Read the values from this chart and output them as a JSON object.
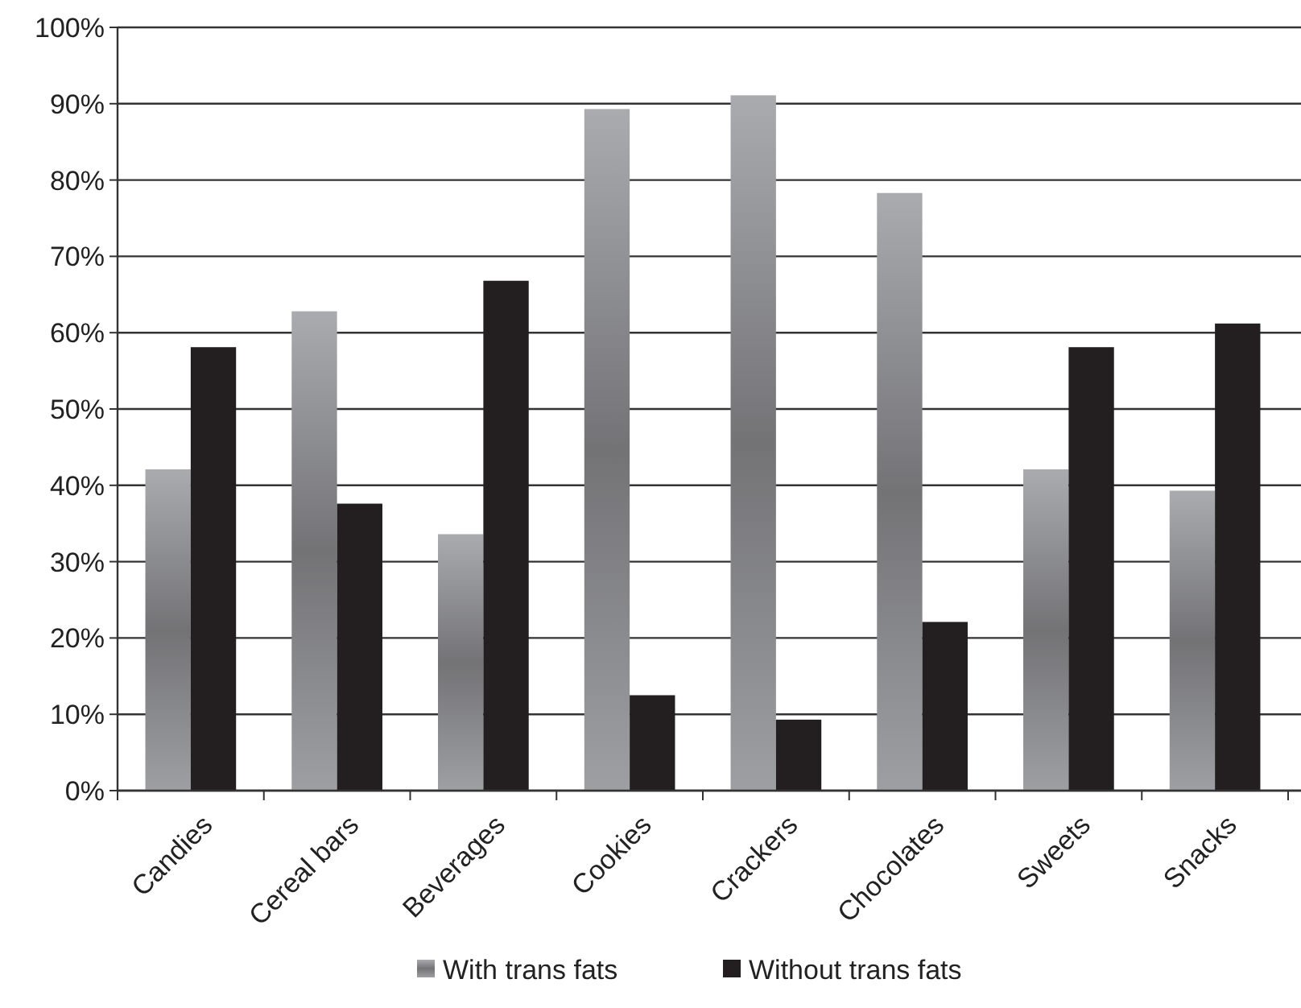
{
  "chart_data": {
    "type": "bar",
    "categories": [
      "Candies",
      "Cereal bars",
      "Beverages",
      "Cookies",
      "Crackers",
      "Chocolates",
      "Sweets",
      "Snacks"
    ],
    "series": [
      {
        "name": "With trans fats",
        "color": "#8e8f92",
        "values": [
          42.1,
          62.8,
          33.6,
          89.3,
          91.1,
          78.3,
          42.1,
          39.3
        ]
      },
      {
        "name": "Without trans fats",
        "color": "#231f20",
        "values": [
          58.1,
          37.6,
          66.8,
          12.5,
          9.3,
          22.1,
          58.1,
          61.2
        ]
      }
    ],
    "ylim": [
      0,
      100
    ],
    "yticks": [
      {
        "value": 0,
        "label": "0%"
      },
      {
        "value": 10,
        "label": "10%"
      },
      {
        "value": 20,
        "label": "20%"
      },
      {
        "value": 30,
        "label": "30%"
      },
      {
        "value": 40,
        "label": "40%"
      },
      {
        "value": 50,
        "label": "50%"
      },
      {
        "value": 60,
        "label": "60%"
      },
      {
        "value": 70,
        "label": "70%"
      },
      {
        "value": 80,
        "label": "80%"
      },
      {
        "value": 90,
        "label": "90%"
      },
      {
        "value": 100,
        "label": "100%"
      }
    ],
    "grid": "y",
    "legend": "bottom"
  }
}
